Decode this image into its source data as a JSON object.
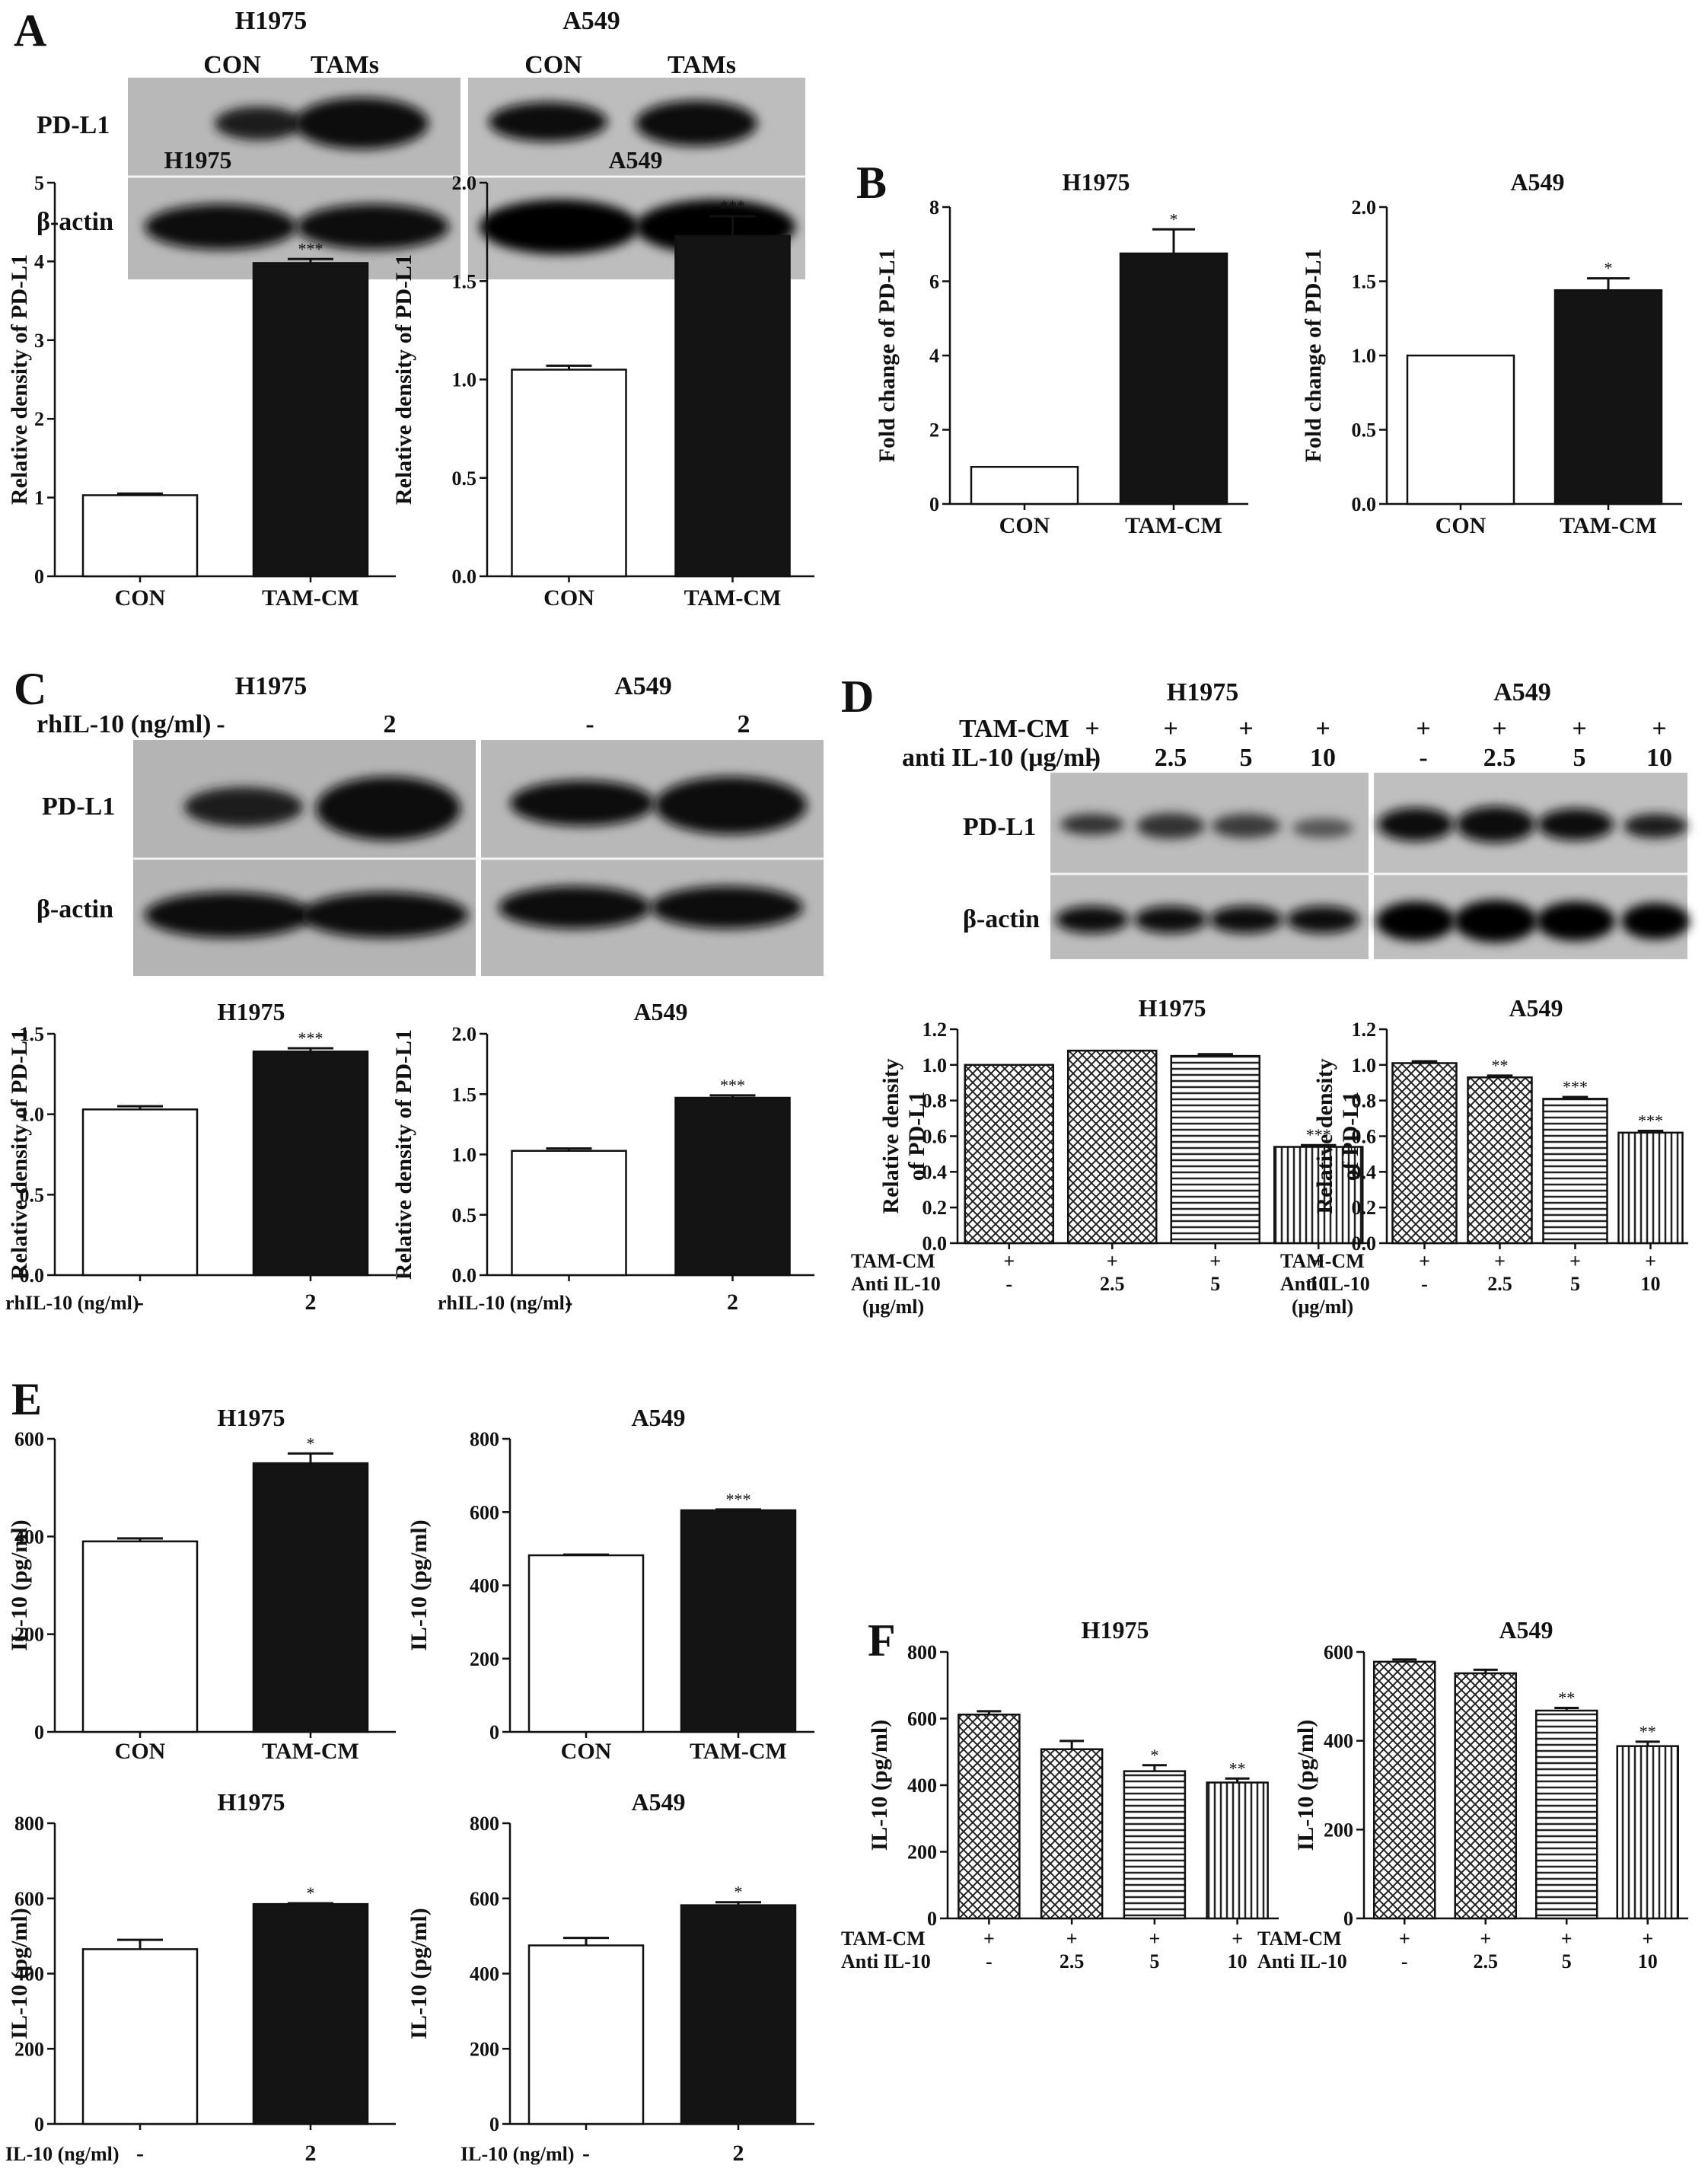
{
  "figure": {
    "panel_labels": [
      "A",
      "B",
      "C",
      "D",
      "E",
      "F"
    ]
  },
  "blots": [
    {
      "panel": "A",
      "cell_lines": [
        "H1975",
        "A549"
      ],
      "lane_labels": [
        [
          "CON",
          "TAMs"
        ],
        [
          "CON",
          "TAMs"
        ]
      ],
      "row_labels": [
        "PD-L1",
        "β-actin"
      ],
      "condition_label": "",
      "treatment_rows": []
    },
    {
      "panel": "C",
      "cell_lines": [
        "H1975",
        "A549"
      ],
      "lane_labels": [
        [
          "-",
          "2"
        ],
        [
          "-",
          "2"
        ]
      ],
      "row_labels": [
        "PD-L1",
        "β-actin"
      ],
      "condition_label": "rhIL-10 (ng/ml)",
      "treatment_rows": []
    },
    {
      "panel": "D",
      "cell_lines": [
        "H1975",
        "A549"
      ],
      "lane_labels": [],
      "row_labels": [
        "PD-L1",
        "β-actin"
      ],
      "condition_label": "",
      "treatment_rows": [
        {
          "label": "TAM-CM",
          "values": [
            "+",
            "+",
            "+",
            "+",
            "+",
            "+",
            "+",
            "+"
          ]
        },
        {
          "label": "anti IL-10 (μg/ml)",
          "values": [
            "-",
            "2.5",
            "5",
            "10",
            "-",
            "2.5",
            "5",
            "10"
          ]
        }
      ]
    }
  ],
  "chart_data": [
    {
      "id": "A1",
      "panel": "A",
      "type": "bar",
      "title": "H1975",
      "xlabel": "",
      "ylabel": "Relative density of PD-L1",
      "categories": [
        "CON",
        "TAM-CM"
      ],
      "values": [
        1.03,
        3.98
      ],
      "errors": [
        0.02,
        0.05
      ],
      "significance": [
        "",
        "***"
      ],
      "ylim": [
        0,
        5
      ],
      "yticks": [
        "0",
        "1",
        "2",
        "3",
        "4",
        "5"
      ],
      "fills": [
        "white",
        "black"
      ],
      "grid": false
    },
    {
      "id": "A2",
      "panel": "A",
      "type": "bar",
      "title": "A549",
      "xlabel": "",
      "ylabel": "Relative density of PD-L1",
      "categories": [
        "CON",
        "TAM-CM"
      ],
      "values": [
        1.05,
        1.73
      ],
      "errors": [
        0.02,
        0.1
      ],
      "significance": [
        "",
        "***"
      ],
      "ylim": [
        0,
        2.0
      ],
      "yticks": [
        "0.0",
        "0.5",
        "1.0",
        "1.5",
        "2.0"
      ],
      "fills": [
        "white",
        "black"
      ],
      "grid": false
    },
    {
      "id": "B1",
      "panel": "B",
      "type": "bar",
      "title": "H1975",
      "xlabel": "",
      "ylabel": "Fold change of PD-L1",
      "categories": [
        "CON",
        "TAM-CM"
      ],
      "values": [
        1.0,
        6.75
      ],
      "errors": [
        0,
        0.65
      ],
      "significance": [
        "",
        "*"
      ],
      "ylim": [
        0,
        8
      ],
      "yticks": [
        "0",
        "2",
        "4",
        "6",
        "8"
      ],
      "fills": [
        "white",
        "black"
      ],
      "grid": false
    },
    {
      "id": "B2",
      "panel": "B",
      "type": "bar",
      "title": "A549",
      "xlabel": "",
      "ylabel": "Fold change of PD-L1",
      "categories": [
        "CON",
        "TAM-CM"
      ],
      "values": [
        1.0,
        1.44
      ],
      "errors": [
        0,
        0.08
      ],
      "significance": [
        "",
        "*"
      ],
      "ylim": [
        0,
        2.0
      ],
      "yticks": [
        "0.0",
        "0.5",
        "1.0",
        "1.5",
        "2.0"
      ],
      "fills": [
        "white",
        "black"
      ],
      "grid": false
    },
    {
      "id": "C1",
      "panel": "C",
      "type": "bar",
      "title": "H1975",
      "xlabel": "",
      "ylabel": "Relative density of PD-L1",
      "categories": [
        "-",
        "2"
      ],
      "values": [
        1.03,
        1.39
      ],
      "errors": [
        0.02,
        0.02
      ],
      "significance": [
        "",
        "***"
      ],
      "ylim": [
        0,
        1.5
      ],
      "yticks": [
        "0.0",
        "0.5",
        "1.0",
        "1.5"
      ],
      "fills": [
        "white",
        "black"
      ],
      "grid": false,
      "row_label": "rhIL-10 (ng/ml)"
    },
    {
      "id": "C2",
      "panel": "C",
      "type": "bar",
      "title": "A549",
      "xlabel": "",
      "ylabel": "Relative density of PD-L1",
      "categories": [
        "-",
        "2"
      ],
      "values": [
        1.03,
        1.47
      ],
      "errors": [
        0.02,
        0.02
      ],
      "significance": [
        "",
        "***"
      ],
      "ylim": [
        0,
        2.0
      ],
      "yticks": [
        "0.0",
        "0.5",
        "1.0",
        "1.5",
        "2.0"
      ],
      "fills": [
        "white",
        "black"
      ],
      "grid": false,
      "row_label": "rhIL-10 (ng/ml)"
    },
    {
      "id": "D1",
      "panel": "D",
      "type": "bar",
      "title": "H1975",
      "xlabel": "",
      "ylabel": "Relative density of PD-L1",
      "categories": [
        "+",
        "+",
        "+",
        "+"
      ],
      "values": [
        1.0,
        1.08,
        1.05,
        0.54
      ],
      "errors": [
        0,
        0,
        0.01,
        0.01
      ],
      "significance": [
        "",
        "",
        "",
        "***"
      ],
      "ylim": [
        0,
        1.2
      ],
      "yticks": [
        "0.0",
        "0.2",
        "0.4",
        "0.6",
        "0.8",
        "1.0",
        "1.2"
      ],
      "fills": [
        "check",
        "check",
        "hstripe",
        "vstripe"
      ],
      "grid": false,
      "table_rows": [
        {
          "label": "TAM-CM",
          "values": [
            "+",
            "+",
            "+",
            "+"
          ]
        },
        {
          "label": "Anti IL-10",
          "values": [
            "-",
            "2.5",
            "5",
            "10"
          ]
        },
        {
          "label": "(μg/ml)",
          "values": []
        }
      ]
    },
    {
      "id": "D2",
      "panel": "D",
      "type": "bar",
      "title": "A549",
      "xlabel": "",
      "ylabel": "Relative density of PD-L1",
      "categories": [
        "+",
        "+",
        "+",
        "+"
      ],
      "values": [
        1.01,
        0.93,
        0.81,
        0.62
      ],
      "errors": [
        0.01,
        0.01,
        0.01,
        0.01
      ],
      "significance": [
        "",
        "**",
        "***",
        "***"
      ],
      "ylim": [
        0,
        1.2
      ],
      "yticks": [
        "0.0",
        "0.2",
        "0.4",
        "0.6",
        "0.8",
        "1.0",
        "1.2"
      ],
      "fills": [
        "check",
        "check",
        "hstripe",
        "vstripe"
      ],
      "grid": false,
      "table_rows": [
        {
          "label": "TAM-CM",
          "values": [
            "+",
            "+",
            "+",
            "+"
          ]
        },
        {
          "label": "Anti IL-10",
          "values": [
            "-",
            "2.5",
            "5",
            "10"
          ]
        },
        {
          "label": "(μg/ml)",
          "values": []
        }
      ]
    },
    {
      "id": "E1",
      "panel": "E",
      "type": "bar",
      "title": "H1975",
      "xlabel": "",
      "ylabel": "IL-10 (pg/ml)",
      "categories": [
        "CON",
        "TAM-CM"
      ],
      "values": [
        390,
        550
      ],
      "errors": [
        6,
        20
      ],
      "significance": [
        "",
        "*"
      ],
      "ylim": [
        0,
        600
      ],
      "yticks": [
        "0",
        "200",
        "400",
        "600"
      ],
      "fills": [
        "white",
        "black"
      ],
      "grid": false
    },
    {
      "id": "E2",
      "panel": "E",
      "type": "bar",
      "title": "A549",
      "xlabel": "",
      "ylabel": "IL-10 (pg/ml)",
      "categories": [
        "CON",
        "TAM-CM"
      ],
      "values": [
        482,
        605
      ],
      "errors": [
        2,
        2
      ],
      "significance": [
        "",
        "***"
      ],
      "ylim": [
        0,
        800
      ],
      "yticks": [
        "0",
        "200",
        "400",
        "600",
        "800"
      ],
      "fills": [
        "white",
        "black"
      ],
      "grid": false
    },
    {
      "id": "E3",
      "panel": "E",
      "type": "bar",
      "title": "H1975",
      "xlabel": "",
      "ylabel": "IL-10 (pg/ml)",
      "categories": [
        "-",
        "2"
      ],
      "values": [
        465,
        585
      ],
      "errors": [
        25,
        2
      ],
      "significance": [
        "",
        "*"
      ],
      "ylim": [
        0,
        800
      ],
      "yticks": [
        "0",
        "200",
        "400",
        "600",
        "800"
      ],
      "fills": [
        "white",
        "black"
      ],
      "grid": false,
      "row_label": "IL-10 (ng/ml)"
    },
    {
      "id": "E4",
      "panel": "E",
      "type": "bar",
      "title": "A549",
      "xlabel": "",
      "ylabel": "IL-10 (pg/ml)",
      "categories": [
        "-",
        "2"
      ],
      "values": [
        475,
        582
      ],
      "errors": [
        20,
        8
      ],
      "significance": [
        "",
        "*"
      ],
      "ylim": [
        0,
        800
      ],
      "yticks": [
        "0",
        "200",
        "400",
        "600",
        "800"
      ],
      "fills": [
        "white",
        "black"
      ],
      "grid": false,
      "row_label": "IL-10 (ng/ml)"
    },
    {
      "id": "F1",
      "panel": "F",
      "type": "bar",
      "title": "H1975",
      "xlabel": "",
      "ylabel": "IL-10 (pg/ml)",
      "categories": [
        "+",
        "+",
        "+",
        "+"
      ],
      "values": [
        612,
        508,
        442,
        408
      ],
      "errors": [
        10,
        25,
        18,
        12
      ],
      "significance": [
        "",
        "",
        "*",
        "**"
      ],
      "ylim": [
        0,
        800
      ],
      "yticks": [
        "0",
        "200",
        "400",
        "600",
        "800"
      ],
      "fills": [
        "check",
        "check",
        "hstripe",
        "vstripe"
      ],
      "grid": false,
      "table_rows": [
        {
          "label": "TAM-CM",
          "values": [
            "+",
            "+",
            "+",
            "+"
          ]
        },
        {
          "label": "Anti IL-10",
          "values": [
            "-",
            "2.5",
            "5",
            "10"
          ]
        }
      ]
    },
    {
      "id": "F2",
      "panel": "F",
      "type": "bar",
      "title": "A549",
      "xlabel": "",
      "ylabel": "IL-10 (pg/ml)",
      "categories": [
        "+",
        "+",
        "+",
        "+"
      ],
      "values": [
        578,
        552,
        468,
        388
      ],
      "errors": [
        5,
        8,
        6,
        10
      ],
      "significance": [
        "",
        "",
        "**",
        "**"
      ],
      "ylim": [
        0,
        600
      ],
      "yticks": [
        "0",
        "200",
        "400",
        "600"
      ],
      "fills": [
        "check",
        "check",
        "hstripe",
        "vstripe"
      ],
      "grid": false,
      "table_rows": [
        {
          "label": "TAM-CM",
          "values": [
            "+",
            "+",
            "+",
            "+"
          ]
        },
        {
          "label": "Anti IL-10",
          "values": [
            "-",
            "2.5",
            "5",
            "10"
          ]
        }
      ]
    }
  ]
}
